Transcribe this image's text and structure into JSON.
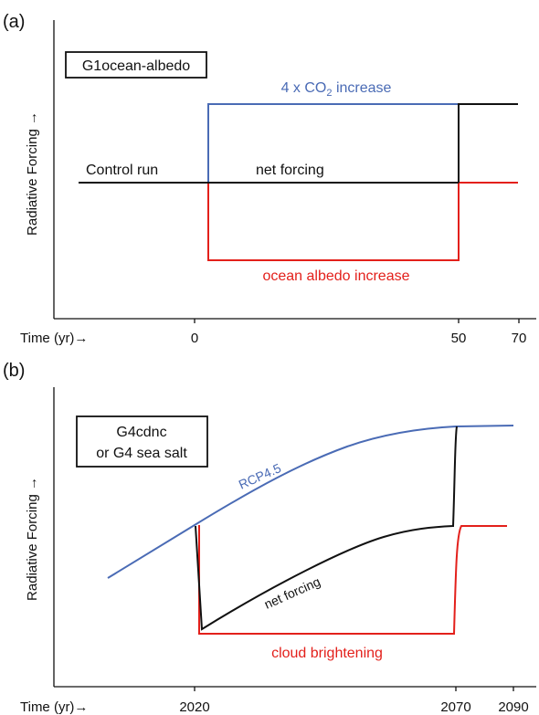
{
  "colors": {
    "co2": "#4a6bb5",
    "albedo": "#e3201b",
    "net": "#111111",
    "axis": "#111111"
  },
  "panel_a": {
    "panel_label": "(a)",
    "box_label": "G1ocean-albedo",
    "y_axis_label": "Radiative Forcing →",
    "x_axis_label": "Time (yr)→",
    "x_ticks": [
      "0",
      "50",
      "70"
    ],
    "co2_label_prefix": "4 x CO",
    "co2_label_sub": "2",
    "co2_label_suffix": " increase",
    "control_label": "Control run",
    "net_label": "net forcing",
    "albedo_label": "ocean albedo increase"
  },
  "panel_b": {
    "panel_label": "(b)",
    "box_label_line1": "G4cdnc",
    "box_label_line2": "or G4 sea salt",
    "y_axis_label": "Radiative Forcing →",
    "x_axis_label": "Time (yr)→",
    "x_ticks": [
      "2020",
      "2070",
      "2090"
    ],
    "rcp_label": "RCP4.5",
    "net_label": "net forcing",
    "cloud_label": "cloud brightening"
  }
}
